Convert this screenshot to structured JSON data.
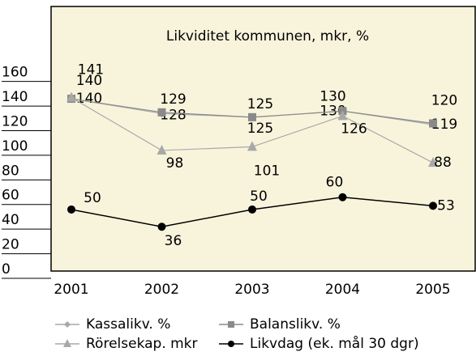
{
  "chart_data": {
    "type": "line",
    "title": "Likviditet kommunen, mkr, %",
    "categories": [
      "2001",
      "2002",
      "2003",
      "2004",
      "2005"
    ],
    "series": [
      {
        "name": "Kassalikv. %",
        "color": "#a8a8a8",
        "marker": "diamond",
        "values": [
          140,
          128,
          125,
          130,
          119
        ]
      },
      {
        "name": "Balanslikv. %",
        "color": "#8a8a8a",
        "marker": "square",
        "values": [
          140,
          129,
          125,
          130,
          120
        ]
      },
      {
        "name": "Rörelsekap. mkr",
        "color": "#a8a8a8",
        "marker": "triangle",
        "values": [
          141,
          98,
          101,
          126,
          88
        ]
      },
      {
        "name": "Likvdag (ek. mål 30 dgr)",
        "color": "#000000",
        "marker": "circle",
        "values": [
          50,
          36,
          50,
          60,
          53
        ]
      }
    ],
    "ylim": [
      0,
      215
    ],
    "yticks": [
      0,
      20,
      40,
      60,
      80,
      100,
      120,
      140,
      160
    ],
    "grid": false
  }
}
